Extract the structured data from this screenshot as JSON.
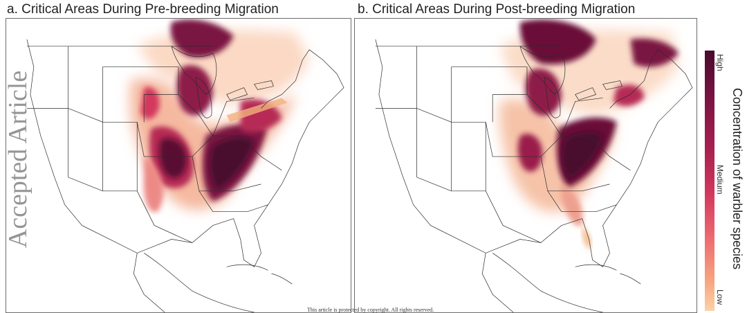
{
  "panels": {
    "a": {
      "title": "a. Critical Areas During Pre-breeding Migration"
    },
    "b": {
      "title": "b. Critical Areas During Post-breeding Migration"
    }
  },
  "legend": {
    "label": "Concentration of warbler species",
    "ticks": {
      "high": "High",
      "medium": "Medium",
      "low": "Low"
    },
    "colors": {
      "high": "#4a0a2e",
      "medium": "#d3385d",
      "low": "#fcd2a6"
    }
  },
  "watermark": "Accepted Article",
  "footer": "This article is protected by copyright. All rights reserved."
}
